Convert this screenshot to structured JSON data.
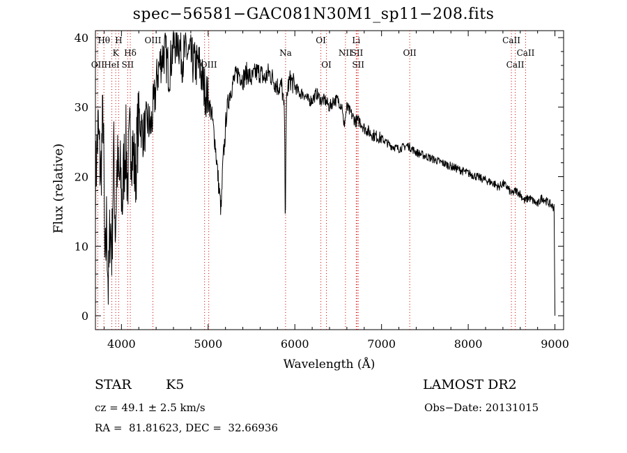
{
  "header": {
    "title": "spec−56581−GAC081N30M1_sp11−208.fits"
  },
  "info": {
    "class_label": "STAR",
    "subclass": "K5",
    "survey": "LAMOST DR2",
    "cz": "cz = 49.1 ± 2.5 km/s",
    "obs_date": "Obs−Date: 20131015",
    "coords": "RA =  81.81623, DEC =  32.66936"
  },
  "chart_data": {
    "type": "line",
    "title": "spec−56581−GAC081N30M1_sp11−208.fits",
    "xlabel": "Wavelength (Å)",
    "ylabel": "Flux (relative)",
    "xlim": [
      3700,
      9100
    ],
    "ylim": [
      -2,
      41
    ],
    "xticks": [
      4000,
      5000,
      6000,
      7000,
      8000,
      9000
    ],
    "yticks": [
      0,
      10,
      20,
      30,
      40
    ],
    "line_color": "#000000",
    "marker_color": "#cc0000",
    "series": [
      {
        "x": [
          3700,
          3730,
          3760,
          3790,
          3810,
          3830,
          3850,
          3870,
          3890,
          3910,
          3930,
          3950,
          3970,
          3990,
          4010,
          4030,
          4050,
          4070,
          4100,
          4130,
          4160,
          4200,
          4250,
          4300,
          4340,
          4380,
          4420,
          4460,
          4500,
          4550,
          4600,
          4650,
          4700,
          4750,
          4800,
          4850,
          4900,
          4950,
          5000,
          5040,
          5080,
          5120,
          5150,
          5170,
          5190,
          5210,
          5250,
          5300,
          5350,
          5400,
          5450,
          5500,
          5550,
          5600,
          5650,
          5700,
          5750,
          5800,
          5850,
          5880,
          5890,
          5896,
          5905,
          5920,
          5950,
          6000,
          6050,
          6100,
          6150,
          6200,
          6250,
          6300,
          6350,
          6400,
          6450,
          6500,
          6550,
          6563,
          6600,
          6650,
          6700,
          6750,
          6800,
          6900,
          7000,
          7100,
          7200,
          7300,
          7400,
          7500,
          7600,
          7700,
          7800,
          7900,
          8000,
          8100,
          8200,
          8300,
          8350,
          8400,
          8450,
          8500,
          8550,
          8600,
          8650,
          8700,
          8750,
          8800,
          8850,
          8900,
          8950,
          8990,
          9000
        ],
        "y": [
          19,
          27,
          20,
          30,
          5,
          14,
          3,
          14,
          9,
          24,
          12,
          22,
          19,
          20,
          16,
          22,
          25,
          19,
          26,
          24,
          20,
          29,
          26,
          28,
          27,
          31,
          35,
          37,
          38,
          35,
          39,
          40,
          37,
          38,
          37,
          36,
          36,
          33,
          31,
          29,
          25,
          19,
          15,
          22,
          25,
          29,
          32,
          34,
          35,
          34,
          35,
          34,
          35,
          35,
          34,
          35,
          34,
          33,
          33,
          29,
          13,
          24,
          31,
          33,
          34,
          33,
          32,
          32,
          31,
          31,
          32,
          31,
          31,
          30,
          31,
          31,
          30,
          27,
          30,
          29,
          28,
          28,
          27,
          26,
          25.5,
          24.5,
          24,
          24.5,
          23.5,
          23,
          22.5,
          22,
          21.5,
          21,
          20.5,
          20,
          19.5,
          19,
          18.5,
          19,
          18.5,
          17.5,
          18,
          17.5,
          16.5,
          17,
          16.5,
          16,
          17,
          16.5,
          16,
          15.5,
          0
        ]
      }
    ],
    "lines": [
      {
        "name": "O II",
        "x": 3727,
        "label": "OII"
      },
      {
        "name": "H theta",
        "x": 3798,
        "label": "Hθ"
      },
      {
        "name": "Ca II K",
        "x": 3934,
        "label": "K"
      },
      {
        "name": "Ca II H",
        "x": 3968,
        "label": "H"
      },
      {
        "name": "He I",
        "x": 3889,
        "label": "HeI"
      },
      {
        "name": "S II",
        "x": 4072,
        "label": "SII"
      },
      {
        "name": "H delta",
        "x": 4102,
        "label": "Hδ"
      },
      {
        "name": "O III",
        "x": 4363,
        "label": "OIII"
      },
      {
        "name": "O III",
        "x": 4959,
        "label": "OIII"
      },
      {
        "name": "O III",
        "x": 5007,
        "label": "OIII"
      },
      {
        "name": "Na",
        "x": 5893,
        "label": "Na"
      },
      {
        "name": "O I",
        "x": 6300,
        "label": "OI"
      },
      {
        "name": "O I",
        "x": 6364,
        "label": "OI"
      },
      {
        "name": "N II",
        "x": 6584,
        "label": "NII"
      },
      {
        "name": "Li",
        "x": 6708,
        "label": "Li"
      },
      {
        "name": "S II",
        "x": 6717,
        "label": "SII"
      },
      {
        "name": "S II",
        "x": 6731,
        "label": "SII"
      },
      {
        "name": "O II",
        "x": 7325,
        "label": "OII"
      },
      {
        "name": "Ca II",
        "x": 8498,
        "label": "CaII"
      },
      {
        "name": "Ca II",
        "x": 8542,
        "label": "CaII"
      },
      {
        "name": "Ca II",
        "x": 8662,
        "label": "CaII"
      }
    ]
  }
}
